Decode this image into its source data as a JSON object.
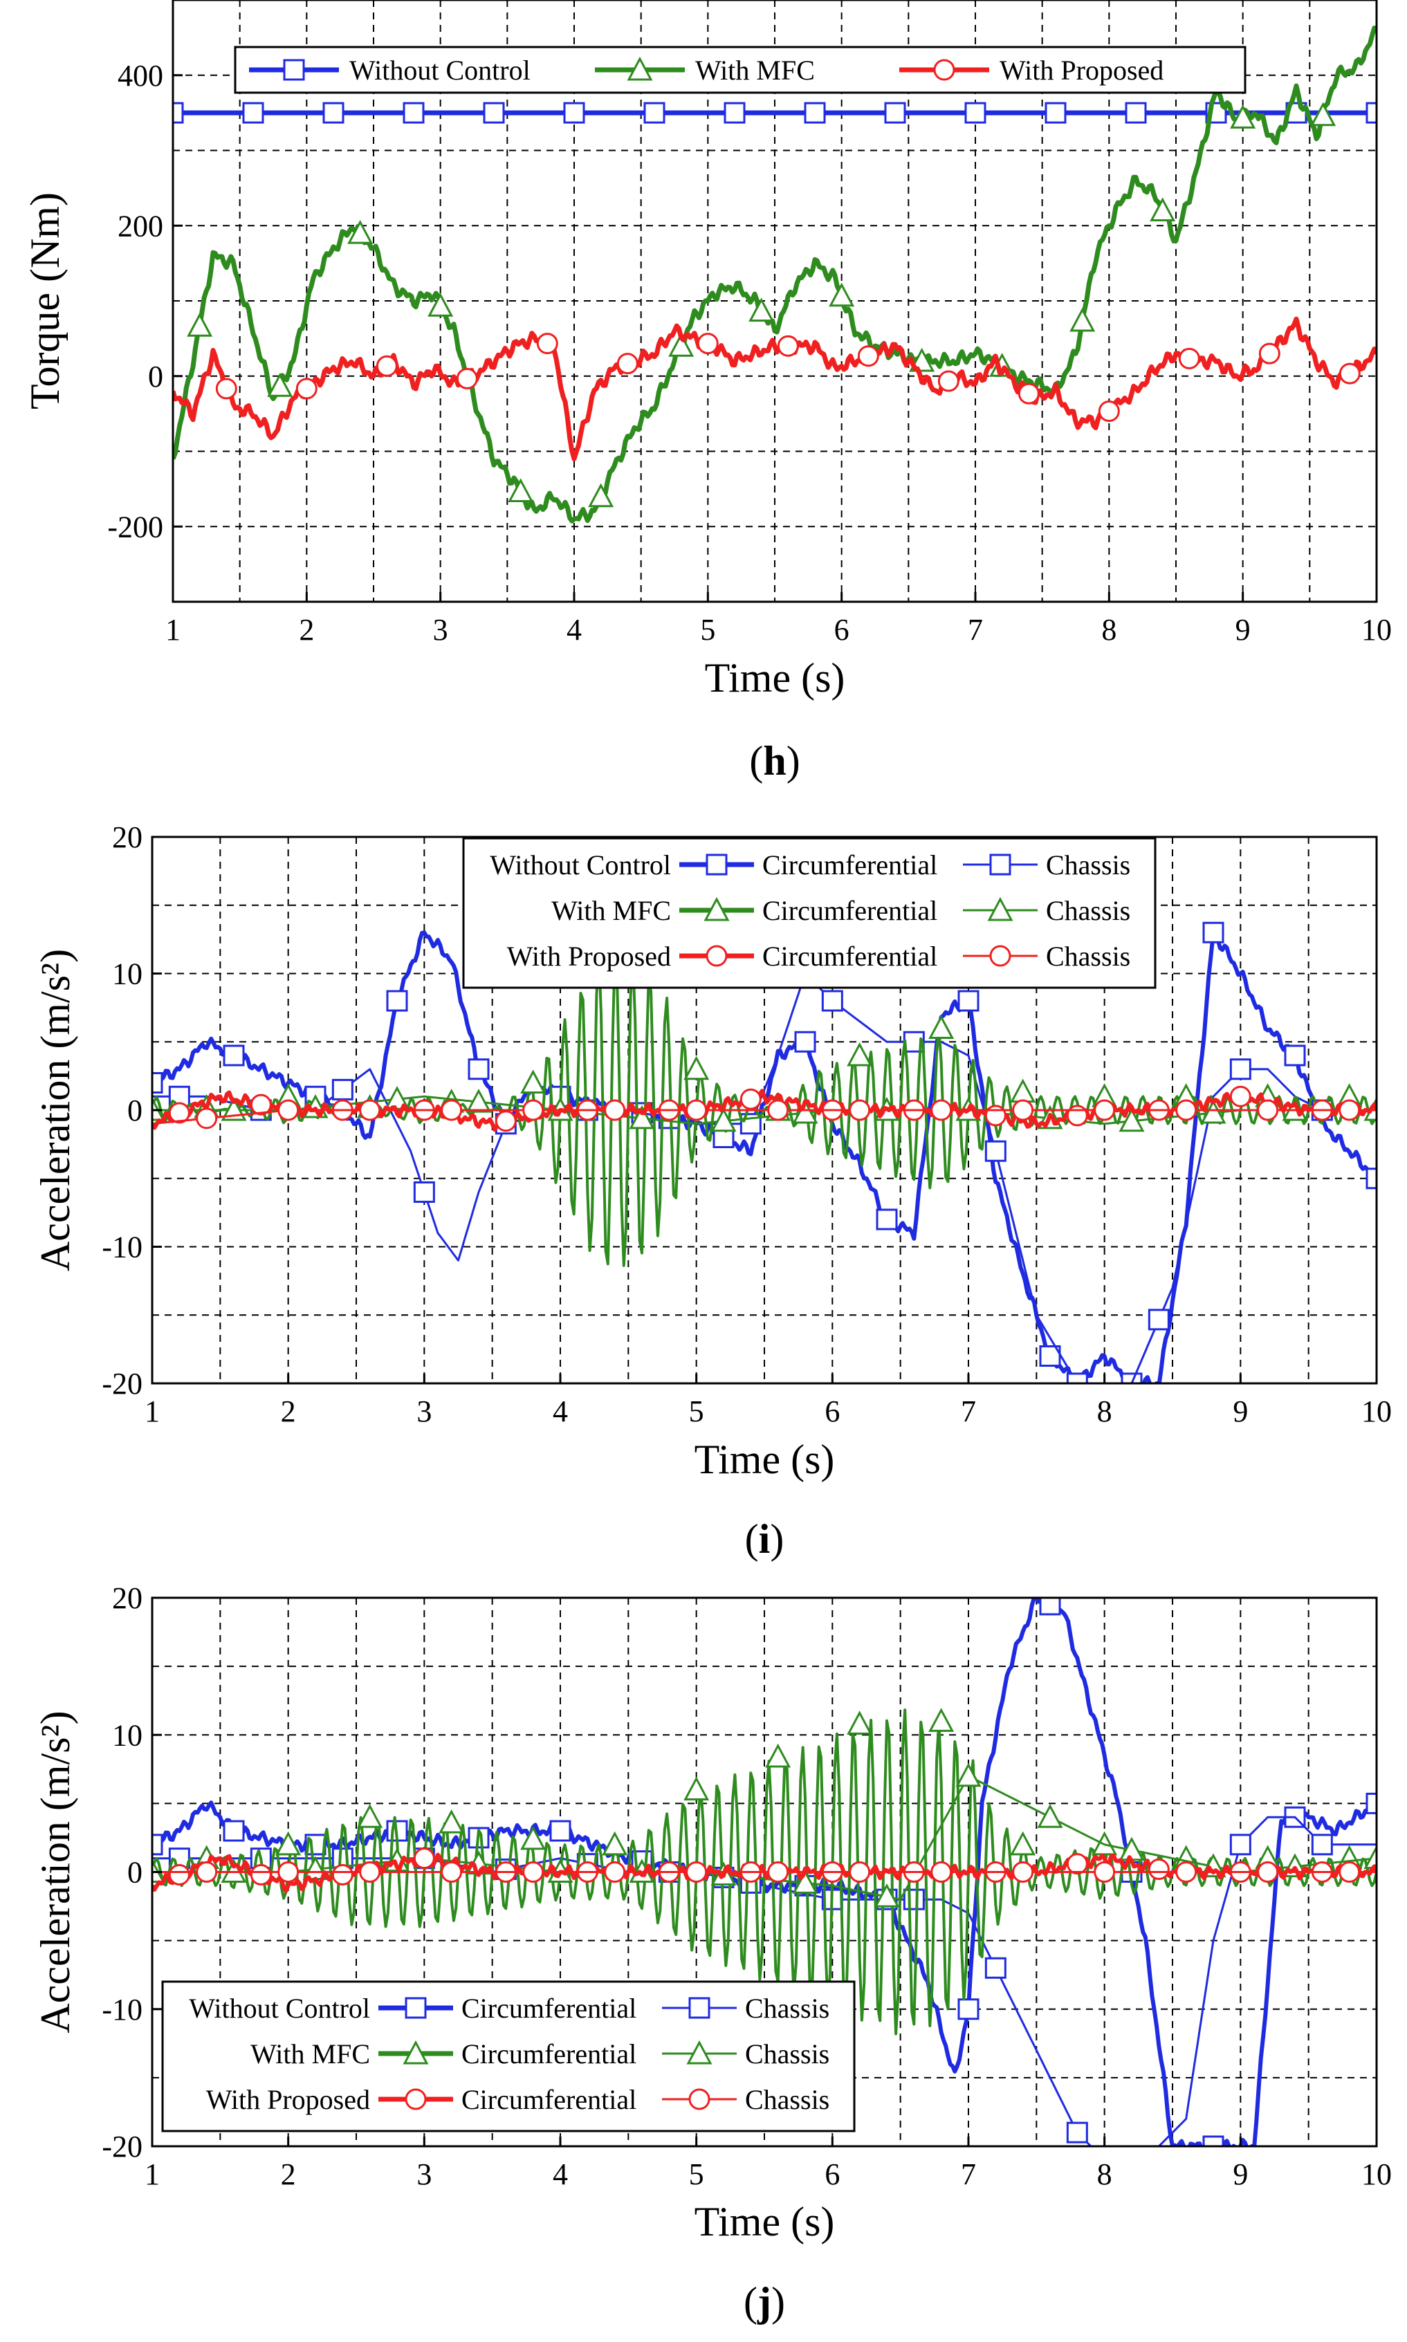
{
  "colors": {
    "blue": "#1f2be0",
    "green": "#2e8b1e",
    "red": "#f02020"
  },
  "chart_data": [
    {
      "type": "line",
      "panel_label": "h",
      "title": "",
      "xlabel": "Time (s)",
      "ylabel": "Torque (Nm)",
      "xlim": [
        1,
        10
      ],
      "ylim": [
        -300,
        500
      ],
      "xticks": [
        1,
        2,
        3,
        4,
        5,
        6,
        7,
        8,
        9,
        10
      ],
      "yticks": [
        -200,
        0,
        200,
        400
      ],
      "grid": true,
      "legend_position": "top",
      "legend": [
        "Without Control",
        "With MFC",
        "With Proposed"
      ],
      "series": [
        {
          "name": "Without Control",
          "color": "blue",
          "marker": "square",
          "width": 7,
          "x": [
            1,
            10
          ],
          "y": [
            350,
            350
          ]
        },
        {
          "name": "With MFC",
          "color": "green",
          "marker": "triangle",
          "width": 7,
          "x": [
            1,
            1.15,
            1.3,
            1.45,
            1.6,
            1.75,
            1.9,
            2.05,
            2.2,
            2.35,
            2.5,
            2.65,
            2.8,
            2.95,
            3.1,
            3.25,
            3.4,
            3.55,
            3.7,
            3.85,
            4.0,
            4.15,
            4.3,
            4.45,
            4.6,
            4.75,
            4.9,
            5.05,
            5.2,
            5.35,
            5.5,
            5.65,
            5.8,
            5.95,
            6.1,
            6.25,
            6.4,
            6.55,
            6.7,
            6.85,
            7.0,
            7.15,
            7.3,
            7.45,
            7.6,
            7.75,
            7.9,
            8.05,
            8.2,
            8.35,
            8.5,
            8.65,
            8.8,
            8.95,
            9.1,
            9.25,
            9.4,
            9.55,
            9.7,
            9.85,
            10.0
          ],
          "y": [
            -110,
            20,
            160,
            150,
            60,
            -30,
            20,
            130,
            170,
            200,
            170,
            120,
            100,
            110,
            60,
            -30,
            -110,
            -140,
            -180,
            -160,
            -190,
            -180,
            -120,
            -70,
            -40,
            20,
            80,
            110,
            120,
            100,
            60,
            120,
            150,
            130,
            60,
            40,
            30,
            20,
            20,
            20,
            30,
            20,
            0,
            -10,
            -20,
            30,
            160,
            220,
            260,
            240,
            180,
            270,
            380,
            340,
            350,
            310,
            380,
            320,
            400,
            410,
            460
          ]
        },
        {
          "name": "With Proposed",
          "color": "red",
          "marker": "circle",
          "width": 7,
          "x": [
            1,
            1.15,
            1.3,
            1.45,
            1.6,
            1.75,
            1.9,
            2.05,
            2.2,
            2.35,
            2.5,
            2.65,
            2.8,
            2.95,
            3.1,
            3.25,
            3.4,
            3.55,
            3.7,
            3.85,
            4.0,
            4.15,
            4.3,
            4.45,
            4.6,
            4.75,
            4.9,
            5.05,
            5.2,
            5.35,
            5.5,
            5.65,
            5.8,
            5.95,
            6.1,
            6.25,
            6.4,
            6.55,
            6.7,
            6.85,
            7.0,
            7.15,
            7.3,
            7.45,
            7.6,
            7.75,
            7.9,
            8.05,
            8.2,
            8.35,
            8.5,
            8.65,
            8.8,
            8.95,
            9.1,
            9.25,
            9.4,
            9.55,
            9.7,
            9.85,
            10.0
          ],
          "y": [
            -20,
            -50,
            30,
            -40,
            -50,
            -80,
            -30,
            -10,
            10,
            20,
            0,
            20,
            -10,
            10,
            -10,
            0,
            20,
            40,
            50,
            40,
            -110,
            -20,
            10,
            20,
            30,
            60,
            50,
            40,
            20,
            30,
            40,
            40,
            40,
            10,
            20,
            30,
            40,
            10,
            -20,
            0,
            -10,
            20,
            -10,
            -30,
            -20,
            -60,
            -60,
            -40,
            -20,
            10,
            30,
            20,
            20,
            0,
            10,
            40,
            70,
            20,
            -10,
            10,
            30
          ]
        }
      ]
    },
    {
      "type": "line",
      "panel_label": "i",
      "title": "",
      "xlabel": "Time (s)",
      "ylabel": "Acceleration (m/s²)",
      "xlim": [
        1,
        10
      ],
      "ylim": [
        -20,
        20
      ],
      "xticks": [
        1,
        2,
        3,
        4,
        5,
        6,
        7,
        8,
        9,
        10
      ],
      "yticks": [
        -20,
        -10,
        0,
        10,
        20
      ],
      "grid": true,
      "legend_position": "top",
      "legend_rows": [
        {
          "label": "Without Control",
          "color": "blue",
          "marker": "square",
          "circumferential": "Circumferential",
          "chassis": "Chassis"
        },
        {
          "label": "With MFC",
          "color": "green",
          "marker": "triangle",
          "circumferential": "Circumferential",
          "chassis": "Chassis"
        },
        {
          "label": "With Proposed",
          "color": "red",
          "marker": "circle",
          "circumferential": "Circumferential",
          "chassis": "Chassis"
        }
      ],
      "series": [
        {
          "name": "Without Control Circumferential",
          "color": "blue",
          "marker": "square",
          "width": 6,
          "x": [
            1,
            1.2,
            1.4,
            1.6,
            1.8,
            2.0,
            2.2,
            2.4,
            2.6,
            2.8,
            3.0,
            3.2,
            3.4,
            3.6,
            3.8,
            4.0,
            4.5,
            5.0,
            5.4,
            5.6,
            5.8,
            6.0,
            6.2,
            6.4,
            6.6,
            6.8,
            7.0,
            7.2,
            7.4,
            7.6,
            7.8,
            8.0,
            8.2,
            8.4,
            8.6,
            8.8,
            9.0,
            9.2,
            9.4,
            9.6,
            9.8,
            10.0
          ],
          "y": [
            2,
            3,
            5,
            4,
            3,
            2,
            1,
            0,
            -2,
            8,
            13,
            11,
            3,
            -1,
            2,
            1,
            0,
            -1,
            -3,
            4,
            5,
            -1,
            -4,
            -8,
            -9,
            7,
            8,
            -5,
            -12,
            -18,
            -20,
            -18,
            -20,
            -20,
            -8,
            13,
            10,
            6,
            4,
            -1,
            -3,
            -5
          ]
        },
        {
          "name": "Without Control Chassis",
          "color": "blue",
          "marker": "square",
          "width": 3,
          "x": [
            1,
            1.4,
            1.8,
            2.2,
            2.6,
            2.9,
            3.1,
            3.25,
            3.4,
            3.6,
            4.0,
            4.5,
            5.0,
            5.4,
            5.6,
            5.8,
            6.0,
            6.4,
            6.8,
            7.0,
            7.2,
            7.5,
            7.8,
            8.2,
            8.5,
            8.8,
            9.0,
            9.2,
            9.4,
            9.6,
            9.8,
            10.0
          ],
          "y": [
            1,
            1,
            0,
            0,
            3,
            -3,
            -9,
            -11,
            -6,
            -1,
            0,
            0,
            -1,
            -1,
            4,
            10,
            8,
            5,
            5,
            4,
            -3,
            -15,
            -20,
            -20,
            -13,
            1,
            3,
            3,
            1,
            0,
            0,
            0
          ]
        },
        {
          "name": "With MFC Circumferential",
          "color": "green",
          "marker": "triangle",
          "width": 4,
          "oscillating": true,
          "x": [
            1,
            1.5,
            2.0,
            2.5,
            3.0,
            3.5,
            3.8,
            4.0,
            4.3,
            4.6,
            4.8,
            5.0,
            5.3,
            5.6,
            5.9,
            6.2,
            6.5,
            6.8,
            7.0,
            7.2,
            7.5,
            8.0,
            8.5,
            9.0,
            9.5,
            10.0
          ],
          "y": [
            1,
            0,
            1,
            0,
            1,
            0,
            2,
            6,
            12,
            11,
            8,
            3,
            1,
            0,
            3,
            4,
            5,
            6,
            4,
            2,
            1,
            1,
            1,
            1,
            1,
            1
          ]
        },
        {
          "name": "With MFC Chassis",
          "color": "green",
          "marker": "triangle",
          "width": 3,
          "x": [
            1,
            2,
            3,
            4,
            5,
            6,
            7,
            8,
            9,
            10
          ],
          "y": [
            0,
            0,
            1,
            0,
            -1,
            0,
            0,
            -1,
            0,
            0
          ]
        },
        {
          "name": "With Proposed Circumferential",
          "color": "red",
          "marker": "circle",
          "width": 6,
          "x": [
            1,
            1.5,
            2,
            2.5,
            3,
            3.5,
            4,
            4.5,
            5,
            5.5,
            6,
            6.5,
            7,
            7.5,
            8,
            8.5,
            9,
            9.5,
            10
          ],
          "y": [
            -1,
            1,
            0,
            0,
            0,
            -1,
            0,
            0,
            0,
            1,
            0,
            0,
            0,
            -1,
            0,
            0,
            1,
            0,
            0
          ]
        },
        {
          "name": "With Proposed Chassis",
          "color": "red",
          "marker": "circle",
          "width": 3,
          "x": [
            1,
            2,
            3,
            4,
            5,
            6,
            7,
            8,
            9,
            10
          ],
          "y": [
            -1,
            0,
            0,
            0,
            0,
            0,
            0,
            0,
            0,
            0
          ]
        }
      ]
    },
    {
      "type": "line",
      "panel_label": "j",
      "title": "",
      "xlabel": "Time (s)",
      "ylabel": "Acceleration (m/s²)",
      "xlim": [
        1,
        10
      ],
      "ylim": [
        -20,
        20
      ],
      "xticks": [
        1,
        2,
        3,
        4,
        5,
        6,
        7,
        8,
        9,
        10
      ],
      "yticks": [
        -20,
        -10,
        0,
        10,
        20
      ],
      "grid": true,
      "legend_position": "bottom-left",
      "legend_rows": [
        {
          "label": "Without Control",
          "color": "blue",
          "marker": "square",
          "circumferential": "Circumferential",
          "chassis": "Chassis"
        },
        {
          "label": "With MFC",
          "color": "green",
          "marker": "triangle",
          "circumferential": "Circumferential",
          "chassis": "Chassis"
        },
        {
          "label": "With Proposed",
          "color": "red",
          "marker": "circle",
          "circumferential": "Circumferential",
          "chassis": "Chassis"
        }
      ],
      "series": [
        {
          "name": "Without Control Circumferential",
          "color": "blue",
          "marker": "square",
          "width": 6,
          "x": [
            1,
            1.2,
            1.4,
            1.6,
            2.0,
            2.4,
            2.8,
            3.2,
            3.6,
            4.0,
            4.5,
            5.0,
            5.5,
            6.0,
            6.4,
            6.7,
            6.9,
            7.0,
            7.1,
            7.3,
            7.5,
            7.7,
            7.9,
            8.1,
            8.3,
            8.5,
            8.7,
            8.9,
            9.1,
            9.3,
            9.5,
            9.7,
            10.0
          ],
          "y": [
            2,
            3,
            5,
            3,
            2,
            2,
            3,
            2,
            3,
            3,
            1,
            0,
            -1,
            -1,
            -2,
            -8,
            -15,
            -10,
            5,
            15,
            20,
            19,
            12,
            5,
            -5,
            -20,
            -20,
            -20,
            -20,
            4,
            4,
            3,
            5
          ]
        },
        {
          "name": "Without Control Chassis",
          "color": "blue",
          "marker": "square",
          "width": 3,
          "x": [
            1,
            1.5,
            2,
            2.5,
            3,
            3.5,
            4,
            4.5,
            5,
            5.5,
            6,
            6.5,
            6.8,
            7.0,
            7.2,
            7.4,
            7.6,
            7.8,
            8.0,
            8.2,
            8.4,
            8.6,
            8.8,
            9.0,
            9.2,
            9.4,
            9.6,
            10.0
          ],
          "y": [
            1,
            1,
            1,
            1,
            1,
            0,
            1,
            0,
            0,
            -1,
            -2,
            -2,
            -2,
            -3,
            -7,
            -11,
            -15,
            -19,
            -21,
            -21,
            -20,
            -18,
            -5,
            2,
            4,
            4,
            2,
            2
          ]
        },
        {
          "name": "With MFC Circumferential",
          "color": "green",
          "marker": "triangle",
          "width": 4,
          "oscillating": true,
          "x": [
            1,
            1.5,
            2,
            2.5,
            3,
            3.5,
            4,
            4.5,
            5,
            5.5,
            6,
            6.5,
            6.8,
            7.0,
            7.2,
            7.5,
            8.0,
            8.5,
            9.0,
            9.5,
            10.0
          ],
          "y": [
            1,
            1,
            2,
            4,
            4,
            3,
            2,
            2,
            6,
            8,
            10,
            12,
            11,
            9,
            4,
            1,
            2,
            1,
            1,
            1,
            1
          ]
        },
        {
          "name": "With MFC Chassis",
          "color": "green",
          "marker": "triangle",
          "width": 3,
          "x": [
            1,
            2,
            3,
            4,
            5,
            6,
            6.5,
            7,
            8,
            9,
            10
          ],
          "y": [
            0,
            0,
            1,
            0,
            0,
            -1,
            -2,
            7,
            2,
            0,
            1
          ]
        },
        {
          "name": "With Proposed Circumferential",
          "color": "red",
          "marker": "circle",
          "width": 6,
          "x": [
            1,
            1.5,
            2,
            2.5,
            3,
            3.5,
            4,
            4.5,
            5,
            5.5,
            6,
            6.5,
            7,
            7.5,
            8,
            8.5,
            9,
            9.5,
            10
          ],
          "y": [
            -1,
            1,
            -1,
            0,
            1,
            0,
            0,
            0,
            0,
            0,
            0,
            0,
            0,
            0,
            1,
            0,
            0,
            0,
            0
          ]
        },
        {
          "name": "With Proposed Chassis",
          "color": "red",
          "marker": "circle",
          "width": 3,
          "x": [
            1,
            2,
            3,
            4,
            5,
            6,
            7,
            8,
            9,
            10
          ],
          "y": [
            0,
            0,
            0,
            0,
            0,
            0,
            0,
            0,
            0,
            0
          ]
        }
      ]
    }
  ]
}
